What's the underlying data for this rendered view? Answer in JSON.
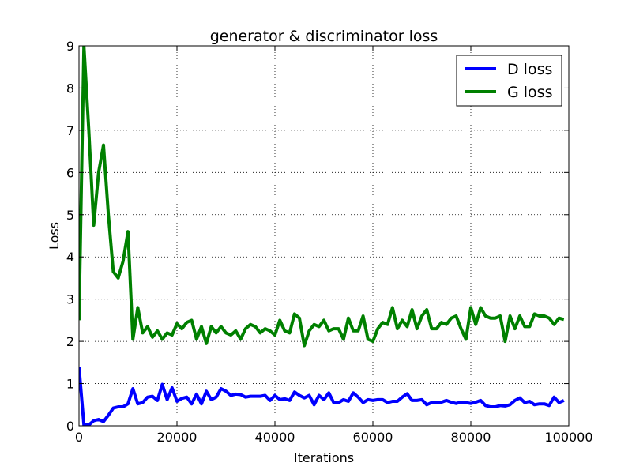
{
  "chart_data": {
    "type": "line",
    "title": "generator & discriminator loss",
    "xlabel": "Iterations",
    "ylabel": "Loss",
    "xlim": [
      0,
      100000
    ],
    "ylim": [
      0,
      9
    ],
    "xticks": [
      0,
      20000,
      40000,
      60000,
      80000,
      100000
    ],
    "xtick_labels": [
      "0",
      "20000",
      "40000",
      "60000",
      "80000",
      "100000"
    ],
    "yticks": [
      0,
      1,
      2,
      3,
      4,
      5,
      6,
      7,
      8,
      9
    ],
    "ytick_labels": [
      "0",
      "1",
      "2",
      "3",
      "4",
      "5",
      "6",
      "7",
      "8",
      "9"
    ],
    "grid": true,
    "legend_position": "top-right",
    "series": [
      {
        "name": "D loss",
        "color": "#0000ff",
        "x": [
          0,
          1000,
          2000,
          3000,
          4000,
          5000,
          6000,
          7000,
          8000,
          9000,
          10000,
          11000,
          12000,
          13000,
          14000,
          15000,
          16000,
          17000,
          18000,
          19000,
          20000,
          21000,
          22000,
          23000,
          24000,
          25000,
          26000,
          27000,
          28000,
          29000,
          30000,
          31000,
          32000,
          33000,
          34000,
          35000,
          36000,
          37000,
          38000,
          39000,
          40000,
          41000,
          42000,
          43000,
          44000,
          45000,
          46000,
          47000,
          48000,
          49000,
          50000,
          51000,
          52000,
          53000,
          54000,
          55000,
          56000,
          57000,
          58000,
          59000,
          60000,
          61000,
          62000,
          63000,
          64000,
          65000,
          66000,
          67000,
          68000,
          69000,
          70000,
          71000,
          72000,
          73000,
          74000,
          75000,
          76000,
          77000,
          78000,
          79000,
          80000,
          81000,
          82000,
          83000,
          84000,
          85000,
          86000,
          87000,
          88000,
          89000,
          90000,
          91000,
          92000,
          93000,
          94000,
          95000,
          96000,
          97000,
          98000,
          99000
        ],
        "y": [
          1.4,
          0.02,
          0.02,
          0.12,
          0.15,
          0.1,
          0.25,
          0.42,
          0.45,
          0.45,
          0.52,
          0.88,
          0.52,
          0.55,
          0.68,
          0.7,
          0.6,
          0.98,
          0.62,
          0.9,
          0.58,
          0.65,
          0.68,
          0.52,
          0.75,
          0.52,
          0.82,
          0.62,
          0.68,
          0.88,
          0.82,
          0.72,
          0.75,
          0.74,
          0.68,
          0.7,
          0.7,
          0.7,
          0.72,
          0.6,
          0.72,
          0.62,
          0.64,
          0.6,
          0.8,
          0.72,
          0.66,
          0.72,
          0.5,
          0.72,
          0.62,
          0.78,
          0.55,
          0.55,
          0.62,
          0.58,
          0.78,
          0.68,
          0.55,
          0.62,
          0.6,
          0.62,
          0.62,
          0.55,
          0.58,
          0.58,
          0.68,
          0.76,
          0.6,
          0.6,
          0.62,
          0.5,
          0.55,
          0.56,
          0.56,
          0.6,
          0.56,
          0.53,
          0.56,
          0.55,
          0.53,
          0.56,
          0.6,
          0.48,
          0.45,
          0.45,
          0.48,
          0.47,
          0.5,
          0.6,
          0.66,
          0.55,
          0.58,
          0.5,
          0.52,
          0.52,
          0.48,
          0.68,
          0.55,
          0.6
        ]
      },
      {
        "name": "G loss",
        "color": "#008000",
        "x": [
          0,
          1000,
          2000,
          3000,
          4000,
          5000,
          6000,
          7000,
          8000,
          9000,
          10000,
          11000,
          12000,
          13000,
          14000,
          15000,
          16000,
          17000,
          18000,
          19000,
          20000,
          21000,
          22000,
          23000,
          24000,
          25000,
          26000,
          27000,
          28000,
          29000,
          30000,
          31000,
          32000,
          33000,
          34000,
          35000,
          36000,
          37000,
          38000,
          39000,
          40000,
          41000,
          42000,
          43000,
          44000,
          45000,
          46000,
          47000,
          48000,
          49000,
          50000,
          51000,
          52000,
          53000,
          54000,
          55000,
          56000,
          57000,
          58000,
          59000,
          60000,
          61000,
          62000,
          63000,
          64000,
          65000,
          66000,
          67000,
          68000,
          69000,
          70000,
          71000,
          72000,
          73000,
          74000,
          75000,
          76000,
          77000,
          78000,
          79000,
          80000,
          81000,
          82000,
          83000,
          84000,
          85000,
          86000,
          87000,
          88000,
          89000,
          90000,
          91000,
          92000,
          93000,
          94000,
          95000,
          96000,
          97000,
          98000,
          99000
        ],
        "y": [
          2.5,
          9.0,
          7.0,
          4.75,
          6.0,
          6.65,
          5.0,
          3.65,
          3.5,
          3.9,
          4.6,
          2.05,
          2.8,
          2.2,
          2.35,
          2.1,
          2.25,
          2.05,
          2.2,
          2.15,
          2.42,
          2.3,
          2.45,
          2.5,
          2.05,
          2.35,
          1.95,
          2.35,
          2.2,
          2.35,
          2.2,
          2.15,
          2.25,
          2.05,
          2.3,
          2.4,
          2.35,
          2.2,
          2.3,
          2.25,
          2.15,
          2.5,
          2.25,
          2.2,
          2.65,
          2.55,
          1.9,
          2.25,
          2.4,
          2.35,
          2.5,
          2.25,
          2.3,
          2.3,
          2.05,
          2.55,
          2.25,
          2.25,
          2.6,
          2.05,
          2.0,
          2.3,
          2.45,
          2.4,
          2.8,
          2.3,
          2.5,
          2.35,
          2.75,
          2.3,
          2.6,
          2.75,
          2.3,
          2.3,
          2.45,
          2.4,
          2.55,
          2.6,
          2.3,
          2.05,
          2.8,
          2.4,
          2.8,
          2.6,
          2.55,
          2.55,
          2.6,
          2.0,
          2.6,
          2.3,
          2.6,
          2.35,
          2.35,
          2.65,
          2.6,
          2.6,
          2.55,
          2.4,
          2.55,
          2.52
        ]
      }
    ]
  }
}
